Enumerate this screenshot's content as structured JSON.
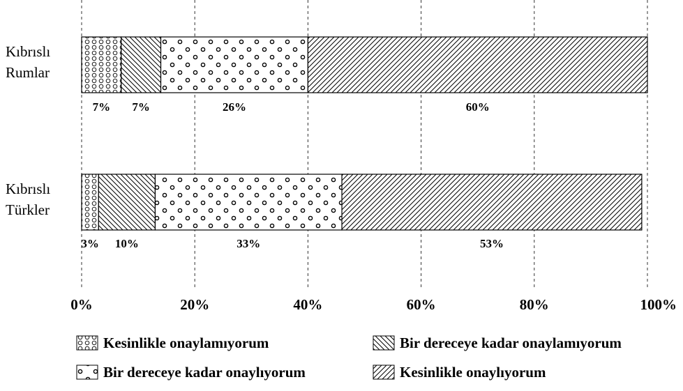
{
  "chart_data": {
    "type": "bar",
    "orientation": "horizontal",
    "stacked": true,
    "percent_stacked": true,
    "categories": [
      [
        "Kıbrıslı",
        "Rumlar"
      ],
      [
        "Kıbrıslı",
        "Türkler"
      ]
    ],
    "series": [
      {
        "name": "Kesinlikle onaylamıyorum",
        "values": [
          7,
          3
        ],
        "labels": [
          "7%",
          "3%"
        ],
        "pattern": "circles-grid"
      },
      {
        "name": "Bir dereceye kadar onaylamıyorum",
        "values": [
          7,
          10
        ],
        "labels": [
          "7%",
          "10%"
        ],
        "pattern": "back-diagonal"
      },
      {
        "name": "Bir dereceye kadar onaylıyorum",
        "values": [
          26,
          33
        ],
        "labels": [
          "26%",
          "33%"
        ],
        "pattern": "dots"
      },
      {
        "name": "Kesinlikle onaylıyorum",
        "values": [
          60,
          53
        ],
        "labels": [
          "60%",
          "53%"
        ],
        "pattern": "forward-diagonal"
      }
    ],
    "x_ticks": [
      "0%",
      "20%",
      "40%",
      "60%",
      "80%",
      "100%"
    ],
    "xlim": [
      0,
      100
    ],
    "grid": "vertical-dashed",
    "legend_placement": "bottom",
    "colors": {
      "ink": "#000000",
      "grid": "#333333",
      "background": "#ffffff"
    }
  }
}
